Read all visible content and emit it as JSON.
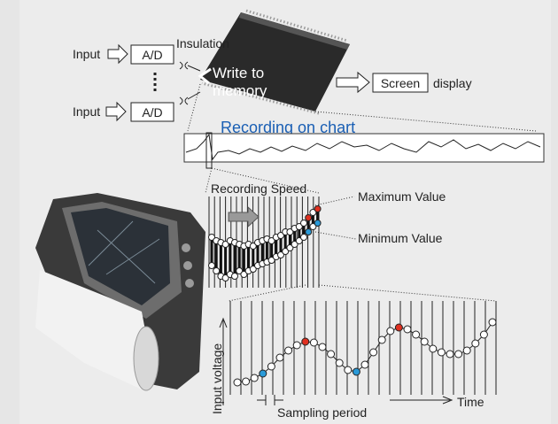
{
  "inputs": [
    {
      "label": "Input",
      "converter": "A/D"
    },
    {
      "label": "Input",
      "converter": "A/D"
    }
  ],
  "insulation": "Insulation",
  "memory": {
    "line1": "Write to",
    "line2": "memory"
  },
  "output": {
    "box": "Screen",
    "label": "display"
  },
  "chart_title": "Recording on chart",
  "recording_speed": "Recording Speed",
  "maximum": "Maximum Value",
  "minimum": "Minimum Value",
  "y_axis": "Input voltage",
  "x_axis": "Time",
  "sampling": "Sampling period"
}
